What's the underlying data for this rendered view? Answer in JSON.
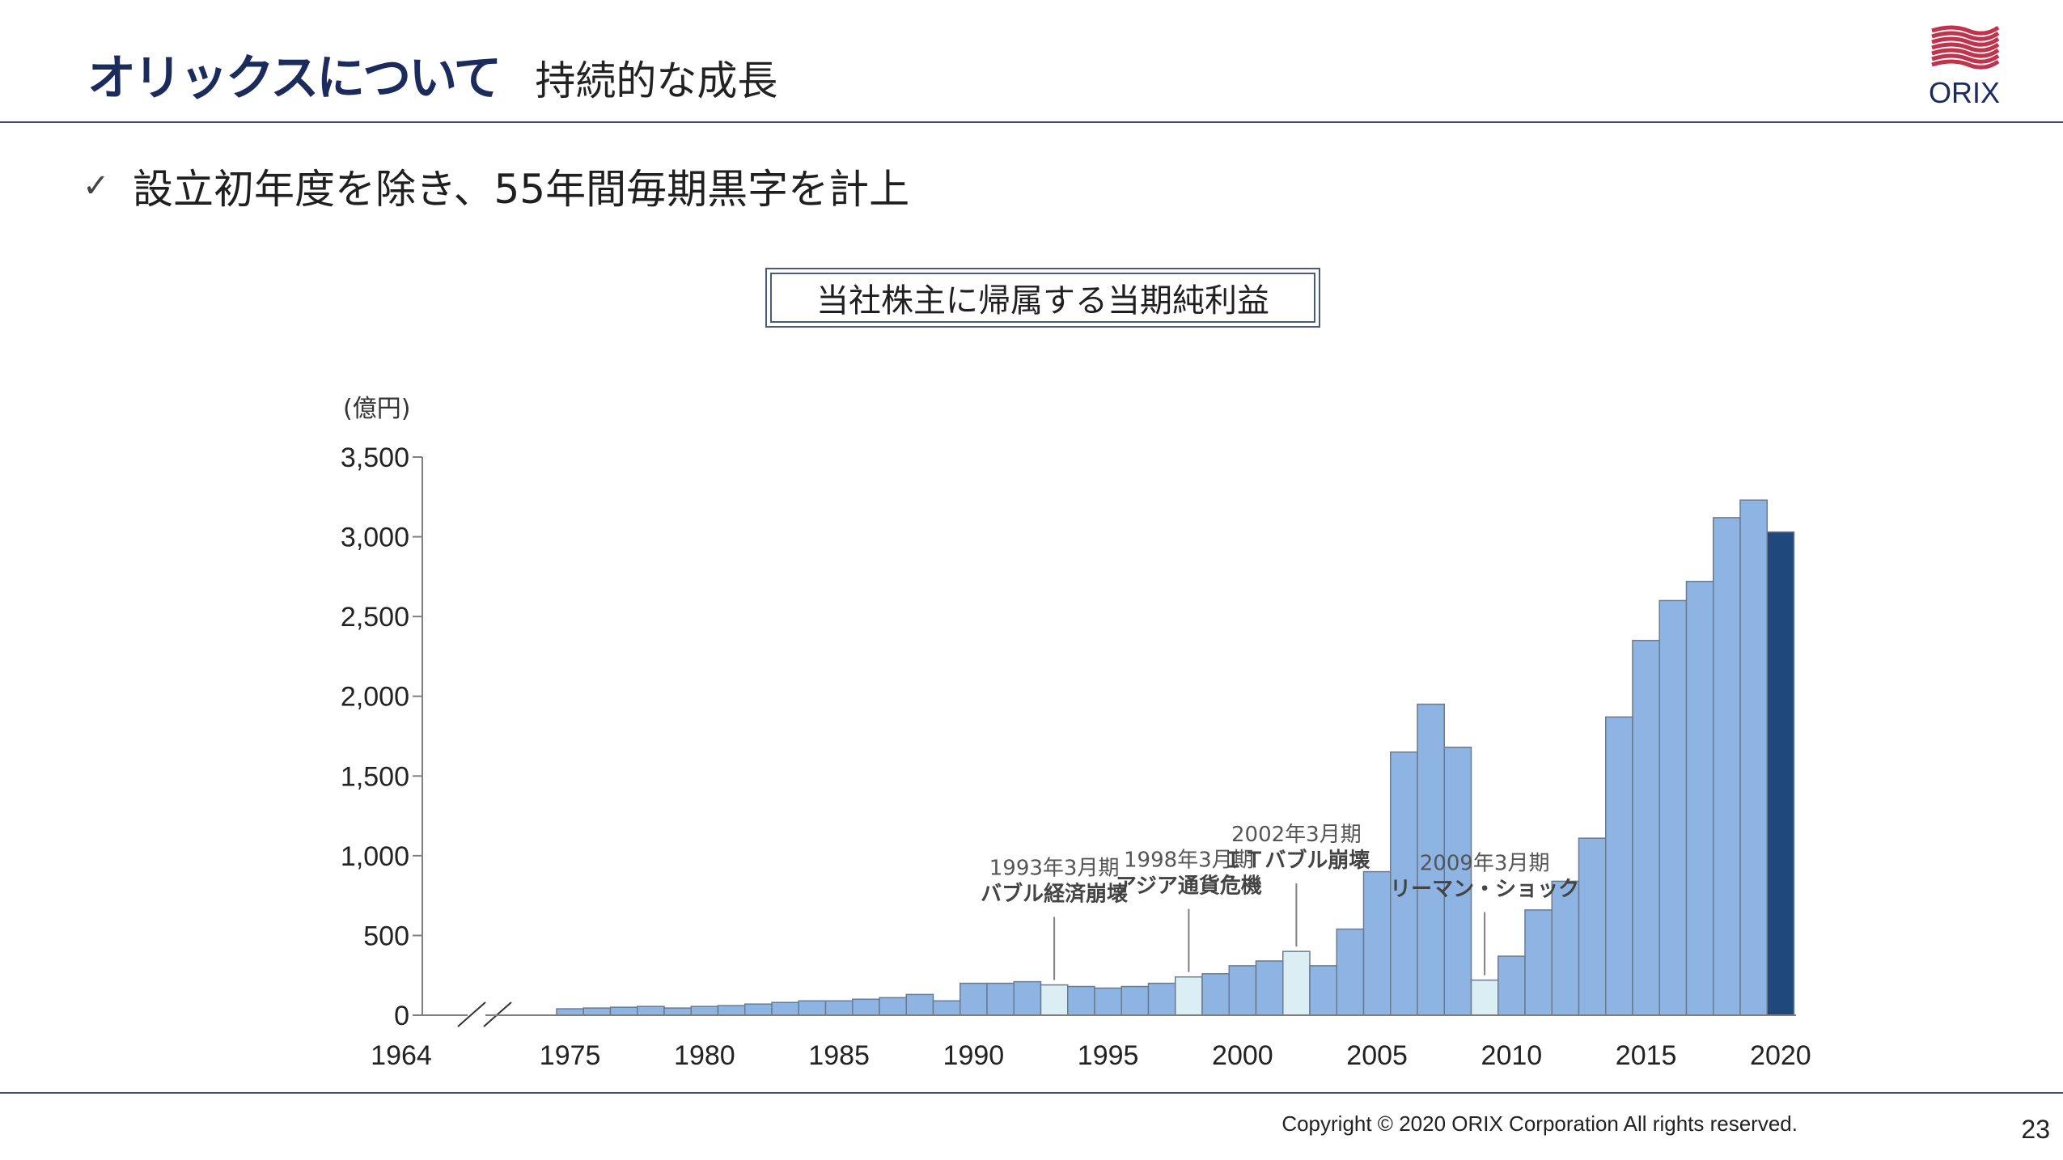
{
  "header": {
    "title": "オリックスについて",
    "subtitle": "持続的な成長"
  },
  "logo": {
    "text": "ORIX",
    "color": "#c0334d"
  },
  "bullet": {
    "icon": "checkmark-icon",
    "text": "設立初年度を除き、55年間毎期黒字を計上"
  },
  "footer": {
    "copyright": "Copyright © 2020 ORIX Corporation  All rights reserved.",
    "page_number": "23"
  },
  "colors": {
    "bar_normal": "#8eb4e3",
    "bar_crisis": "#dbeef4",
    "bar_latest": "#1f497d",
    "bar_border": "#6b7a8c",
    "title_navy": "#1b2b5c"
  },
  "chart_data": {
    "type": "bar",
    "title": "当社株主に帰属する当期純利益",
    "unit_label": "(億円)",
    "ylim": [
      0,
      3500
    ],
    "y_ticks": [
      "0",
      "500",
      "1,000",
      "1,500",
      "2,000",
      "2,500",
      "3,000",
      "3,500"
    ],
    "x_tick_labels": [
      "1964",
      "1975",
      "1980",
      "1985",
      "1990",
      "1995",
      "2000",
      "2005",
      "2010",
      "2015",
      "2020"
    ],
    "axis_break_after": "1964",
    "x": [
      1975,
      1976,
      1977,
      1978,
      1979,
      1980,
      1981,
      1982,
      1983,
      1984,
      1985,
      1986,
      1987,
      1988,
      1989,
      1990,
      1991,
      1992,
      1993,
      1994,
      1995,
      1996,
      1997,
      1998,
      1999,
      2000,
      2001,
      2002,
      2003,
      2004,
      2005,
      2006,
      2007,
      2008,
      2009,
      2010,
      2011,
      2012,
      2013,
      2014,
      2015,
      2016,
      2017,
      2018,
      2019,
      2020
    ],
    "values": [
      40,
      45,
      50,
      55,
      45,
      55,
      60,
      70,
      80,
      90,
      90,
      100,
      110,
      130,
      90,
      200,
      200,
      210,
      190,
      180,
      170,
      180,
      200,
      240,
      260,
      310,
      340,
      400,
      310,
      540,
      900,
      1650,
      1950,
      1680,
      220,
      370,
      660,
      840,
      1110,
      1870,
      2350,
      2600,
      2720,
      3120,
      3230,
      3030
    ],
    "highlight_crisis_years": [
      1993,
      1998,
      2002,
      2009
    ],
    "highlight_latest_year": 2020,
    "annotations": [
      {
        "year": 1993,
        "line1": "1993年3月期",
        "line2": "バブル経済崩壊"
      },
      {
        "year": 1998,
        "line1": "1998年3月期",
        "line2": "アジア通貨危機"
      },
      {
        "year": 2002,
        "line1": "2002年3月期",
        "line2": "ＩＴバブル崩壊"
      },
      {
        "year": 2009,
        "line1": "2009年3月期",
        "line2": "リーマン・ショック"
      }
    ]
  }
}
